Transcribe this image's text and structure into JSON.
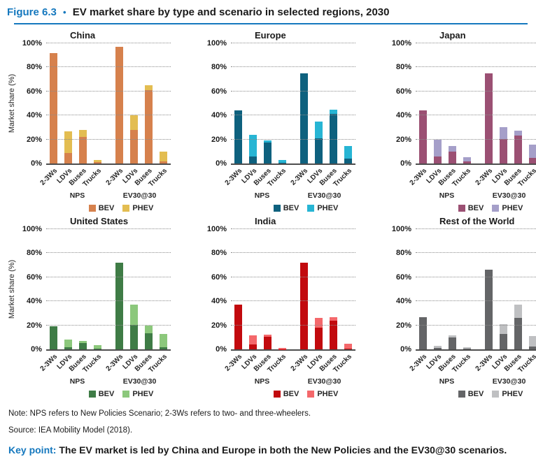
{
  "header": {
    "figure_label": "Figure 6.3",
    "separator": "•",
    "title": "EV market share by type and scenario in selected regions, 2030"
  },
  "chart_data": {
    "type": "bar",
    "stacked": true,
    "title": "EV market share by type and scenario in selected regions, 2030",
    "ylabel": "Market share (%)",
    "ylim": [
      0,
      100
    ],
    "yticks": [
      0,
      20,
      40,
      60,
      80,
      100
    ],
    "ytick_suffix": "%",
    "grid": "horizontal dotted",
    "legend_position": "bottom",
    "categories": [
      "2-3Ws",
      "LDVs",
      "Buses",
      "Trucks"
    ],
    "scenario_groups": [
      "NPS",
      "EV30@30"
    ],
    "legend": [
      "BEV",
      "PHEV"
    ],
    "panels": [
      {
        "title": "China",
        "colors": {
          "bev": "#D6814D",
          "phev": "#E3BD51"
        },
        "groups": [
          {
            "label": "NPS",
            "bev": [
              92,
              9,
              22,
              1
            ],
            "phev": [
              0,
              18,
              6,
              2
            ]
          },
          {
            "label": "EV30@30",
            "bev": [
              97,
              28,
              61,
              2
            ],
            "phev": [
              0,
              12,
              4,
              8
            ]
          }
        ]
      },
      {
        "title": "Europe",
        "colors": {
          "bev": "#0E617E",
          "phev": "#27B5D4"
        },
        "groups": [
          {
            "label": "NPS",
            "bev": [
              44,
              6,
              17.5,
              0.5
            ],
            "phev": [
              0,
              18,
              1.5,
              2.5
            ]
          },
          {
            "label": "EV30@30",
            "bev": [
              75,
              21,
              41.5,
              4
            ],
            "phev": [
              0,
              14,
              3,
              10.5
            ]
          }
        ]
      },
      {
        "title": "Japan",
        "colors": {
          "bev": "#9B5073",
          "phev": "#A59FC9"
        },
        "groups": [
          {
            "label": "NPS",
            "bev": [
              44,
              6,
              10,
              1.5
            ],
            "phev": [
              0,
              14,
              4.5,
              3.5
            ]
          },
          {
            "label": "EV30@30",
            "bev": [
              75,
              20.5,
              23.5,
              4.5
            ],
            "phev": [
              0,
              9.5,
              4,
              11.5
            ]
          }
        ]
      },
      {
        "title": "United States",
        "colors": {
          "bev": "#3F7C46",
          "phev": "#8CC87C"
        },
        "groups": [
          {
            "label": "NPS",
            "bev": [
              19,
              2,
              5,
              0.8
            ],
            "phev": [
              0,
              6,
              2,
              2.7
            ]
          },
          {
            "label": "EV30@30",
            "bev": [
              72,
              20.5,
              13.5,
              2
            ],
            "phev": [
              0,
              16.5,
              6,
              11
            ]
          }
        ]
      },
      {
        "title": "India",
        "colors": {
          "bev": "#C20A0E",
          "phev": "#F4686B"
        },
        "groups": [
          {
            "label": "NPS",
            "bev": [
              37.5,
              4,
              10.5,
              0.2
            ],
            "phev": [
              0,
              7.5,
              1.5,
              0.8
            ]
          },
          {
            "label": "EV30@30",
            "bev": [
              72,
              18,
              24,
              0.5
            ],
            "phev": [
              0,
              8,
              2.5,
              4
            ]
          }
        ]
      },
      {
        "title": "Rest of the World",
        "colors": {
          "bev": "#646567",
          "phev": "#BFC0C2"
        },
        "groups": [
          {
            "label": "NPS",
            "bev": [
              26.5,
              1,
              10,
              0.5
            ],
            "phev": [
              0,
              2,
              1.5,
              1.5
            ]
          },
          {
            "label": "EV30@30",
            "bev": [
              66,
              13,
              26,
              2.5
            ],
            "phev": [
              0,
              8,
              11,
              8.5
            ]
          }
        ]
      }
    ]
  },
  "footer": {
    "note": "Note: NPS refers to New Policies Scenario; 2-3Ws refers to two- and three-wheelers.",
    "source": "Source: IEA Mobility Model (2018).",
    "key_point_label": "Key point:",
    "key_point_text": "The EV market is led by China and Europe in both the New Policies and the EV30@30 scenarios."
  },
  "colors": {
    "accent_blue": "#1578BE",
    "axis_line": "#4D4D4D",
    "gridline": "#8C8C8C"
  }
}
